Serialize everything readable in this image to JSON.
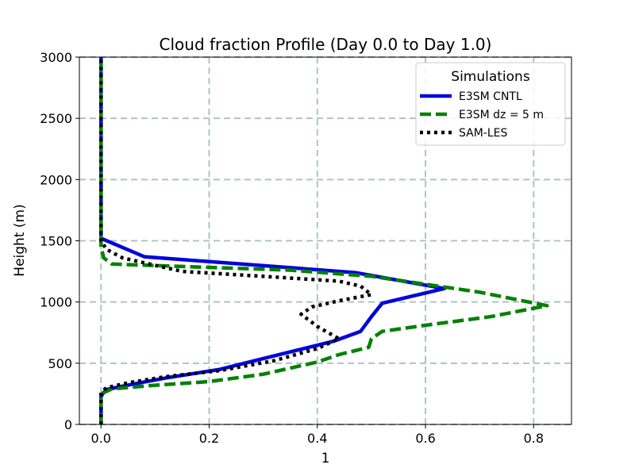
{
  "chart_data": {
    "type": "line",
    "title": "Cloud fraction Profile (Day 0.0 to Day 1.0)",
    "xlabel": "1",
    "ylabel": "Height (m)",
    "xlim": [
      -0.04,
      0.87
    ],
    "ylim": [
      0,
      3000
    ],
    "xticks": [
      0.0,
      0.2,
      0.4,
      0.6,
      0.8
    ],
    "xtick_labels": [
      "0.0",
      "0.2",
      "0.4",
      "0.6",
      "0.8"
    ],
    "yticks": [
      0,
      500,
      1000,
      1500,
      2000,
      2500,
      3000
    ],
    "ytick_labels": [
      "0",
      "500",
      "1000",
      "1500",
      "2000",
      "2500",
      "3000"
    ],
    "grid": true,
    "legend": {
      "title": "Simulations",
      "position": "top-right"
    },
    "series": [
      {
        "name": "E3SM CNTL",
        "color": "#0000dd",
        "style": "solid",
        "points": [
          [
            0.0,
            0
          ],
          [
            0.0,
            200
          ],
          [
            0.0,
            230
          ],
          [
            0.005,
            260
          ],
          [
            0.01,
            285
          ],
          [
            0.06,
            330
          ],
          [
            0.12,
            380
          ],
          [
            0.22,
            450
          ],
          [
            0.32,
            560
          ],
          [
            0.43,
            680
          ],
          [
            0.48,
            760
          ],
          [
            0.5,
            880
          ],
          [
            0.52,
            990
          ],
          [
            0.635,
            1110
          ],
          [
            0.47,
            1240
          ],
          [
            0.08,
            1370
          ],
          [
            0.0,
            1520
          ],
          [
            0.0,
            1600
          ],
          [
            0.0,
            2000
          ],
          [
            0.0,
            2500
          ],
          [
            0.0,
            3000
          ]
        ]
      },
      {
        "name": "E3SM dz = 5 m",
        "color": "#008000",
        "style": "dashed",
        "points": [
          [
            0.0,
            0
          ],
          [
            0.0,
            250
          ],
          [
            0.02,
            290
          ],
          [
            0.1,
            320
          ],
          [
            0.2,
            350
          ],
          [
            0.3,
            410
          ],
          [
            0.38,
            490
          ],
          [
            0.4,
            510
          ],
          [
            0.44,
            570
          ],
          [
            0.495,
            630
          ],
          [
            0.5,
            700
          ],
          [
            0.52,
            760
          ],
          [
            0.6,
            810
          ],
          [
            0.72,
            880
          ],
          [
            0.825,
            970
          ],
          [
            0.7,
            1080
          ],
          [
            0.5,
            1210
          ],
          [
            0.35,
            1260
          ],
          [
            0.15,
            1290
          ],
          [
            0.02,
            1310
          ],
          [
            0.005,
            1360
          ],
          [
            0.0,
            1450
          ],
          [
            0.0,
            1600
          ],
          [
            0.0,
            2000
          ],
          [
            0.0,
            2500
          ],
          [
            0.0,
            3000
          ]
        ]
      },
      {
        "name": "SAM-LES",
        "color": "#000000",
        "style": "dotted",
        "points": [
          [
            0.0,
            0
          ],
          [
            0.0,
            260
          ],
          [
            0.01,
            300
          ],
          [
            0.05,
            340
          ],
          [
            0.12,
            390
          ],
          [
            0.22,
            440
          ],
          [
            0.32,
            520
          ],
          [
            0.4,
            620
          ],
          [
            0.44,
            700
          ],
          [
            0.4,
            800
          ],
          [
            0.37,
            900
          ],
          [
            0.39,
            960
          ],
          [
            0.44,
            1010
          ],
          [
            0.5,
            1060
          ],
          [
            0.48,
            1130
          ],
          [
            0.44,
            1170
          ],
          [
            0.3,
            1210
          ],
          [
            0.15,
            1250
          ],
          [
            0.08,
            1320
          ],
          [
            0.04,
            1360
          ],
          [
            0.01,
            1430
          ],
          [
            0.0,
            1500
          ],
          [
            0.0,
            2000
          ],
          [
            0.0,
            2500
          ],
          [
            0.0,
            3000
          ]
        ]
      }
    ]
  }
}
